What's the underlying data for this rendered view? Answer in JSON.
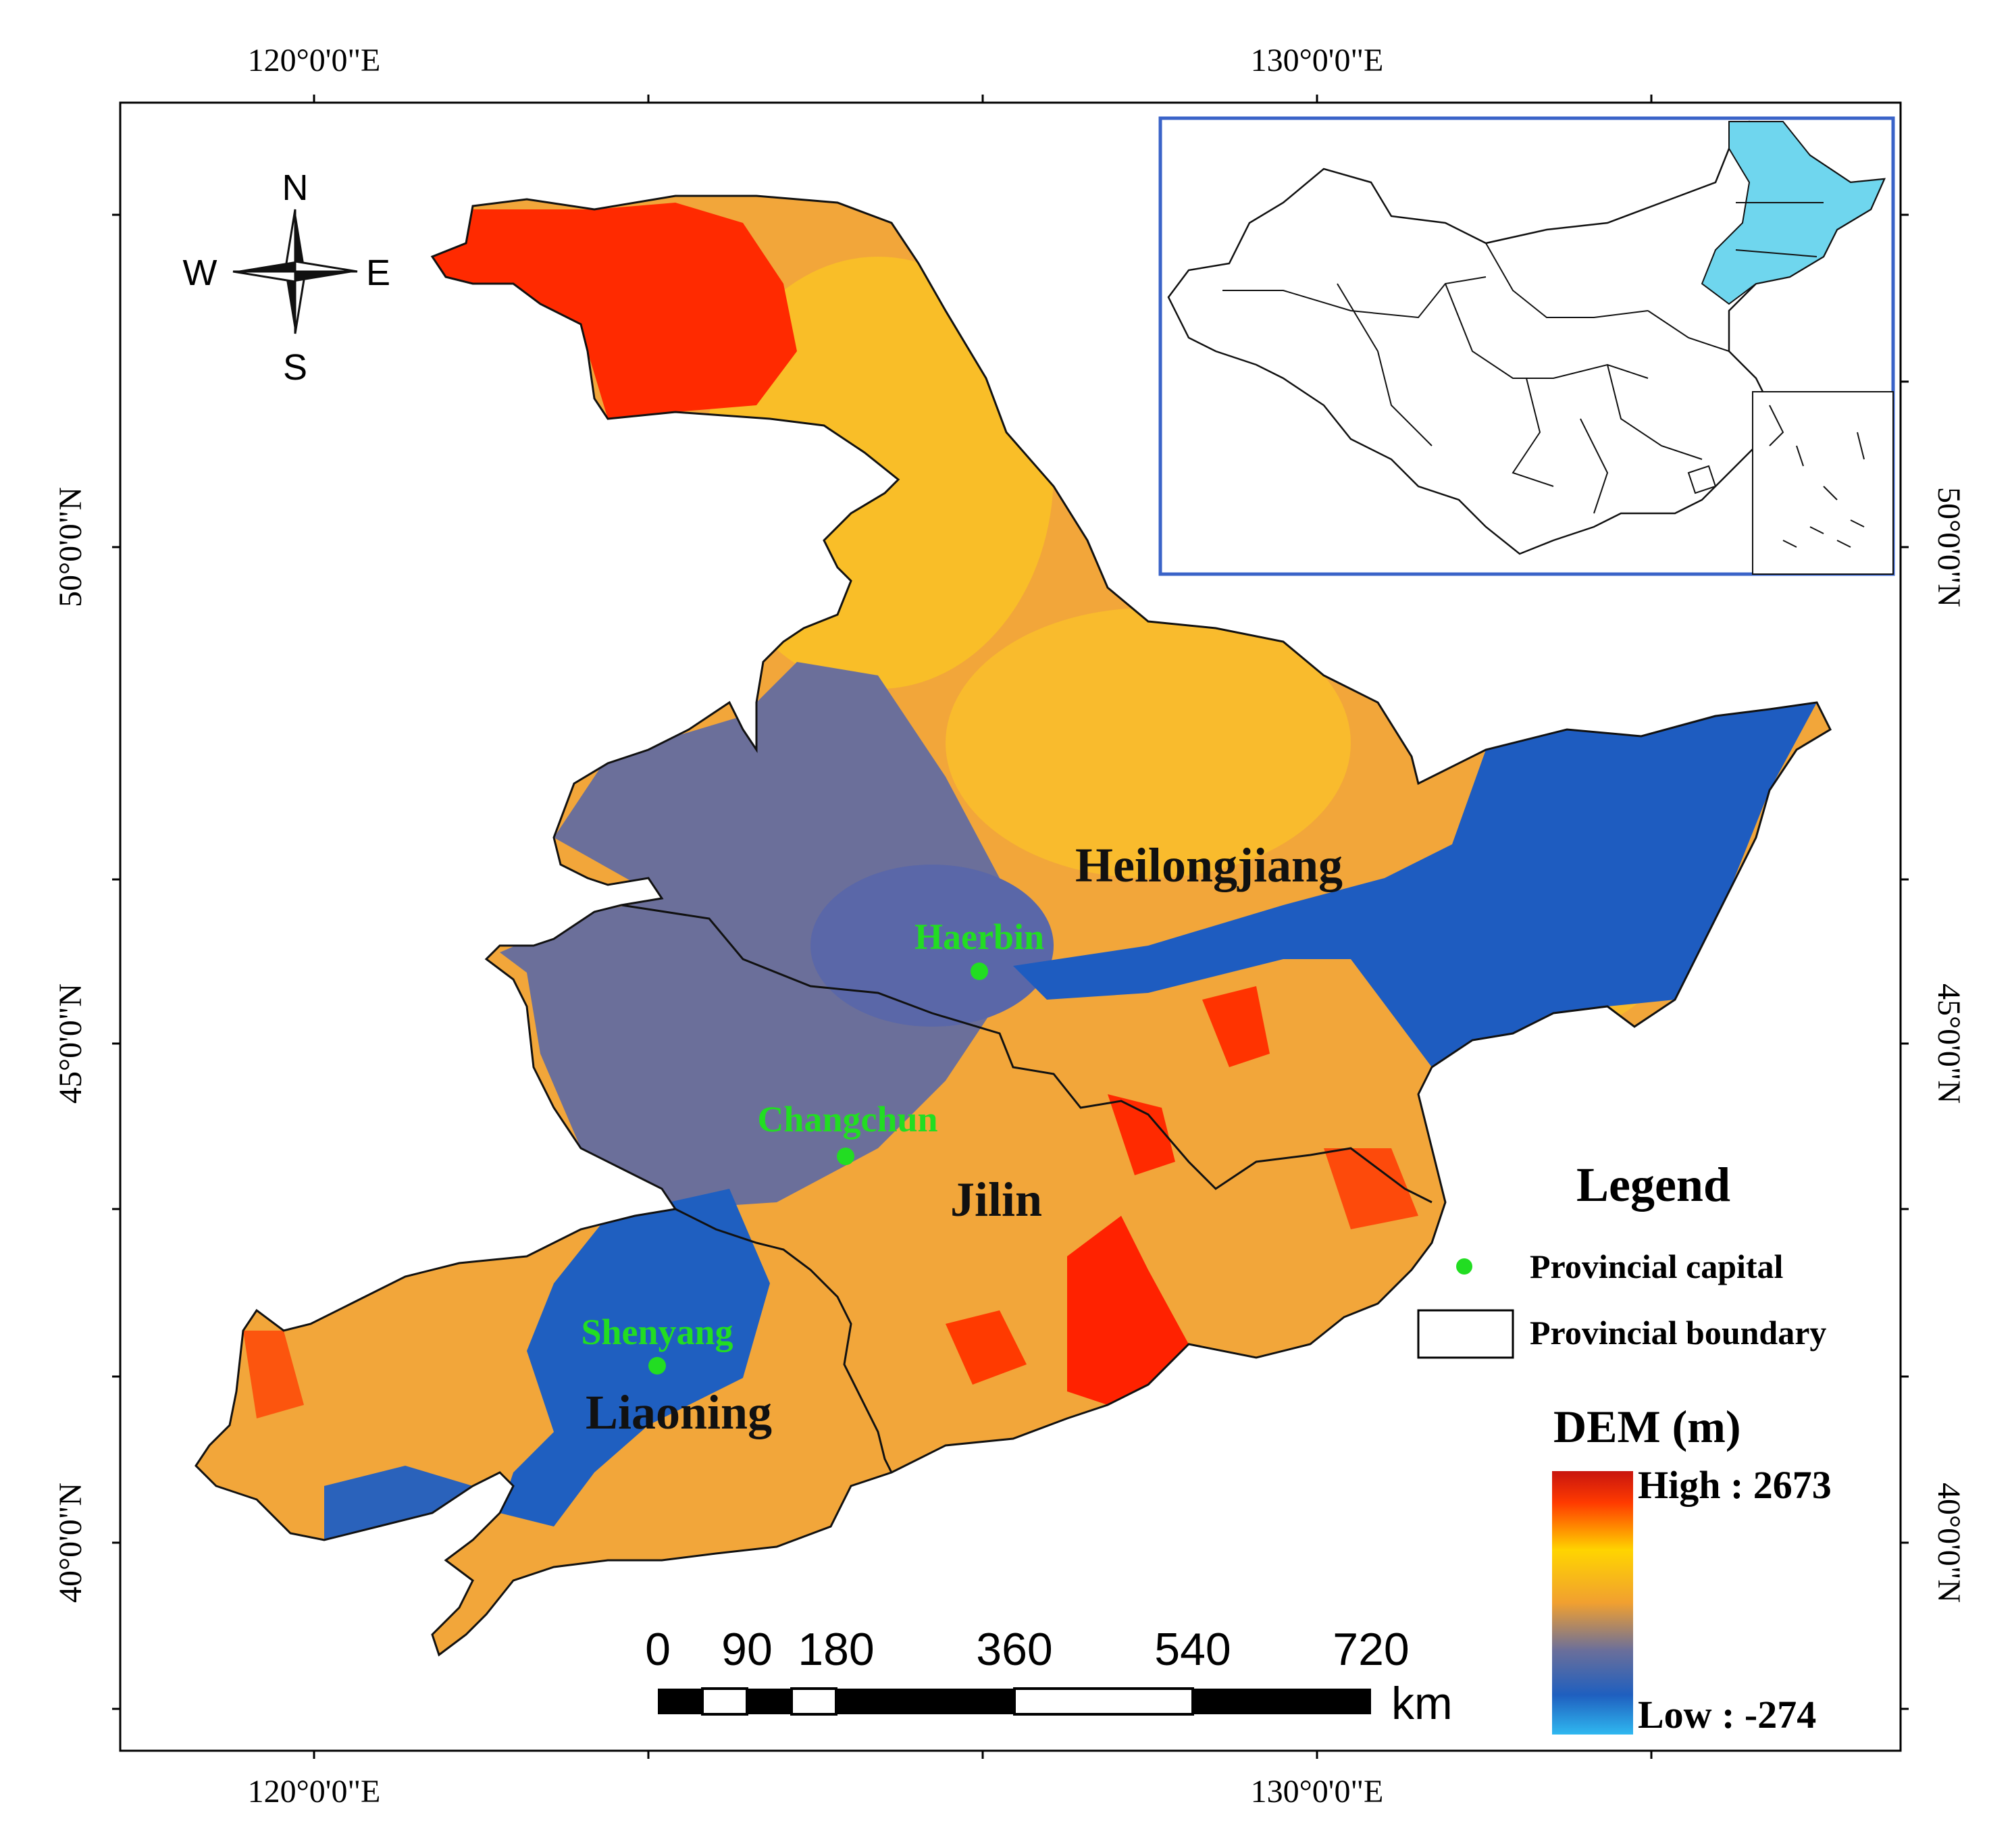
{
  "map": {
    "top_axis_labels": [
      "120°0'0\"E",
      "130°0'0\"E"
    ],
    "bottom_axis_labels": [
      "120°0'0\"E",
      "130°0'0\"E"
    ],
    "left_axis_labels": [
      "50°0'0\"N",
      "45°0'0\"N",
      "40°0'0\"N"
    ],
    "right_axis_labels": [
      "50°0'0\"N",
      "45°0'0\"N",
      "40°0'0\"N"
    ],
    "compass": {
      "n": "N",
      "s": "S",
      "e": "E",
      "w": "W"
    },
    "provinces": [
      "Heilongjiang",
      "Jilin",
      "Liaoning"
    ],
    "capitals": [
      "Haerbin",
      "Changchun",
      "Shenyang"
    ],
    "scale_bar": {
      "ticks": [
        "0",
        "90",
        "180",
        "360",
        "540",
        "720"
      ],
      "unit": "km"
    },
    "legend": {
      "title": "Legend",
      "items": [
        "Provincial capital",
        "Provincial boundary"
      ],
      "dem_title": "DEM (m)",
      "high_label": "High : 2673",
      "low_label": "Low : -274"
    },
    "colors": {
      "capital": "#22dd22",
      "inset_frame": "#3a63c8",
      "inset_highlight": "#6fd6ee",
      "dem_ramp": [
        "#c8150f",
        "#ff2a00",
        "#ffd400",
        "#f1a030",
        "#6b6f9a",
        "#1f5fbf",
        "#2fb8f0"
      ]
    }
  }
}
